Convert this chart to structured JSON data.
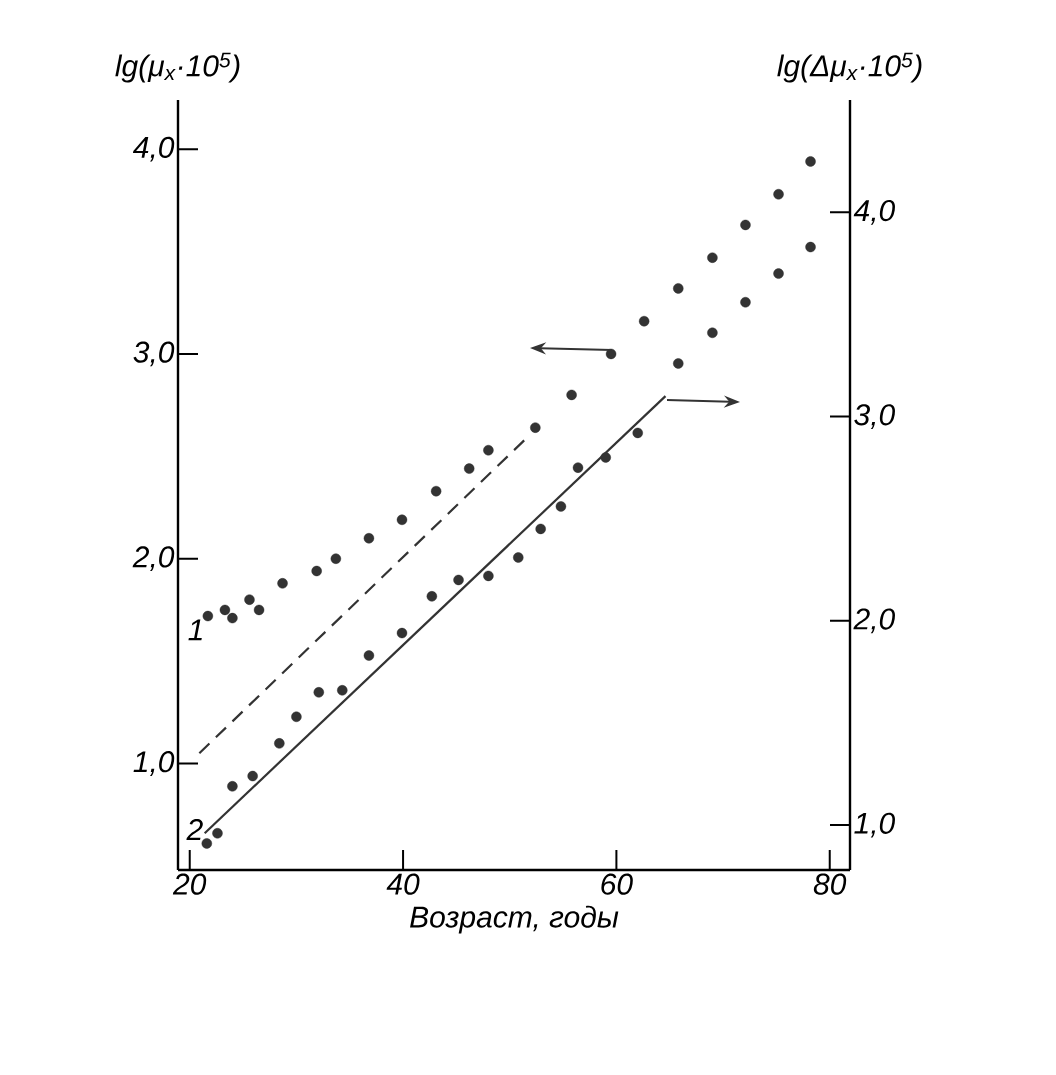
{
  "chart_data": {
    "type": "scatter",
    "xlabel": "Возраст, годы",
    "ylabel": "lg(μ$_{x}$·10$^{5}$)",
    "y2label": "lg(Δμ$_{x}$·10$^{5}$)",
    "xlim": [
      18.9,
      81.9
    ],
    "xticks": [
      20,
      40,
      60,
      80
    ],
    "ylim": [
      0.48,
      4.24
    ],
    "yticks": [
      {
        "value": 1,
        "label": "1,0"
      },
      {
        "value": 2,
        "label": "2,0"
      },
      {
        "value": 3,
        "label": "3,0"
      },
      {
        "value": 4,
        "label": "4,0"
      }
    ],
    "y2lim": [
      0.78,
      4.55
    ],
    "y2ticks": [
      {
        "value": 1,
        "label": "1,0"
      },
      {
        "value": 2,
        "label": "2,0"
      },
      {
        "value": 3,
        "label": "3,0"
      },
      {
        "value": 4,
        "label": "4,0"
      }
    ],
    "grid": false,
    "series": [
      {
        "name": "1",
        "marker": "circle",
        "color": "#333333",
        "x": [
          21.7,
          23.3,
          24,
          25.6,
          26.5,
          28.7,
          31.9,
          33.7,
          36.8,
          39.9,
          43.1,
          46.2,
          48,
          52.4,
          55.8,
          59.5,
          62.6,
          65.8,
          69,
          72.1,
          75.2,
          78.2
        ],
        "values": [
          1.72,
          1.75,
          1.71,
          1.8,
          1.75,
          1.88,
          1.94,
          2.0,
          2.1,
          2.19,
          2.33,
          2.44,
          2.53,
          2.64,
          2.8,
          3.0,
          3.16,
          3.32,
          3.47,
          3.63,
          3.78,
          3.94
        ]
      },
      {
        "type": "line",
        "marker": "none",
        "line_style": "dashed",
        "color": "#333333",
        "x": [
          20.9,
          51.6
        ],
        "values": [
          1.05,
          2.59
        ]
      },
      {
        "name": "2",
        "marker": "circle",
        "axis": "y2",
        "color": "#333333",
        "x": [
          21.6,
          22.6,
          24,
          25.9,
          28.4,
          30,
          32.1,
          34.3,
          36.8,
          39.9,
          42.7,
          45.2,
          48,
          50.8,
          52.9,
          54.8,
          56.4,
          59,
          62,
          65.8,
          69,
          72.1,
          75.2,
          78.2
        ],
        "values": [
          0.91,
          0.96,
          1.19,
          1.24,
          1.4,
          1.53,
          1.65,
          1.66,
          1.83,
          1.94,
          2.12,
          2.2,
          2.22,
          2.31,
          2.45,
          2.56,
          2.75,
          2.8,
          2.92,
          3.26,
          3.41,
          3.56,
          3.7,
          3.83
        ]
      },
      {
        "type": "line",
        "marker": "none",
        "axis": "y2",
        "line_style": "solid",
        "color": "#333333",
        "x": [
          21.4,
          64.6
        ],
        "values": [
          0.96,
          3.1
        ]
      }
    ]
  }
}
